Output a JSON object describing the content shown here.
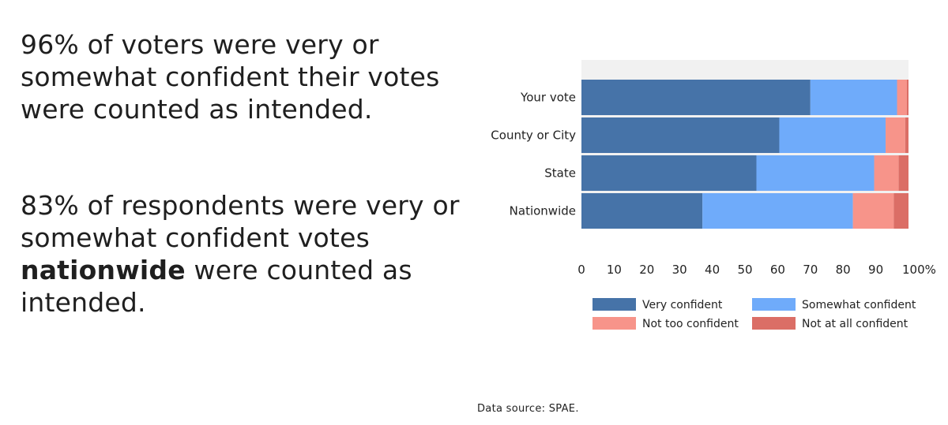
{
  "headline1": "96% of voters were very or somewhat confident their votes were counted as intended.",
  "headline2": {
    "before": "83% of respondents were very or somewhat confident votes",
    "bold": "nationwide",
    "after": "were counted as intended."
  },
  "source": "Data source:  SPAE.",
  "chart_data": {
    "type": "bar",
    "orientation": "horizontal",
    "stacked": true,
    "categories": [
      "Your vote",
      "County or City",
      "State",
      "Nationwide"
    ],
    "series": [
      {
        "name": "Very confident",
        "color": "#4673a8",
        "values": [
          70,
          60.5,
          53.5,
          37
        ]
      },
      {
        "name": "Somewhat confident",
        "color": "#6fabfa",
        "values": [
          26.5,
          32.5,
          36,
          46
        ]
      },
      {
        "name": "Not too confident",
        "color": "#f7948a",
        "values": [
          3,
          6,
          7.5,
          12.5
        ]
      },
      {
        "name": "Not at all confident",
        "color": "#db6e66",
        "values": [
          0.5,
          1,
          3,
          4.5
        ]
      }
    ],
    "x_ticks": [
      "0",
      "10",
      "20",
      "30",
      "40",
      "50",
      "60",
      "70",
      "80",
      "90",
      "100%"
    ],
    "xlim": [
      0,
      100
    ],
    "legend_position": "bottom"
  }
}
